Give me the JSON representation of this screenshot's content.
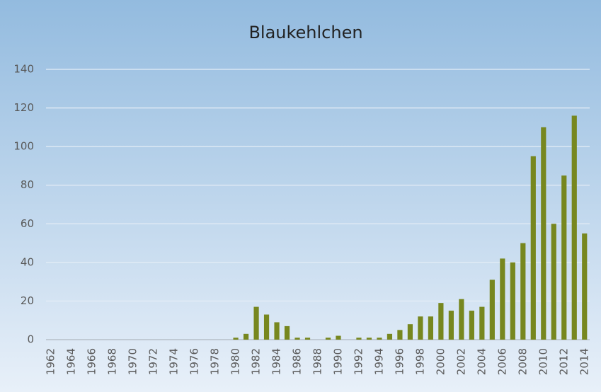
{
  "chart_data": {
    "type": "bar",
    "title": "Blaukehlchen",
    "categories": [
      "1962",
      null,
      "1964",
      null,
      "1966",
      null,
      "1968",
      null,
      "1970",
      null,
      "1972",
      null,
      "1974",
      null,
      "1976",
      null,
      "1978",
      null,
      "1980",
      null,
      "1982",
      null,
      "1984",
      null,
      "1986",
      null,
      "1988",
      null,
      "1990",
      null,
      "1992",
      null,
      "1994",
      null,
      "1996",
      null,
      "1998",
      null,
      "2000",
      null,
      "2002",
      null,
      "2004",
      null,
      "2006",
      null,
      "2008",
      null,
      "2010",
      null,
      "2012",
      null,
      "2014"
    ],
    "values": [
      0,
      0,
      0,
      0,
      0,
      0,
      0,
      0,
      0,
      0,
      0,
      0,
      0,
      0,
      0,
      0,
      0,
      0,
      1,
      3,
      17,
      13,
      9,
      7,
      1,
      1,
      0,
      1,
      2,
      0,
      1,
      1,
      1,
      3,
      5,
      8,
      12,
      12,
      19,
      15,
      21,
      15,
      17,
      31,
      42,
      40,
      50,
      95,
      110,
      60,
      85,
      116,
      55
    ],
    "color": "#77871f",
    "ylim": [
      0,
      140
    ],
    "yticks": [
      0,
      20,
      40,
      60,
      80,
      100,
      120,
      140
    ],
    "grid": true
  }
}
